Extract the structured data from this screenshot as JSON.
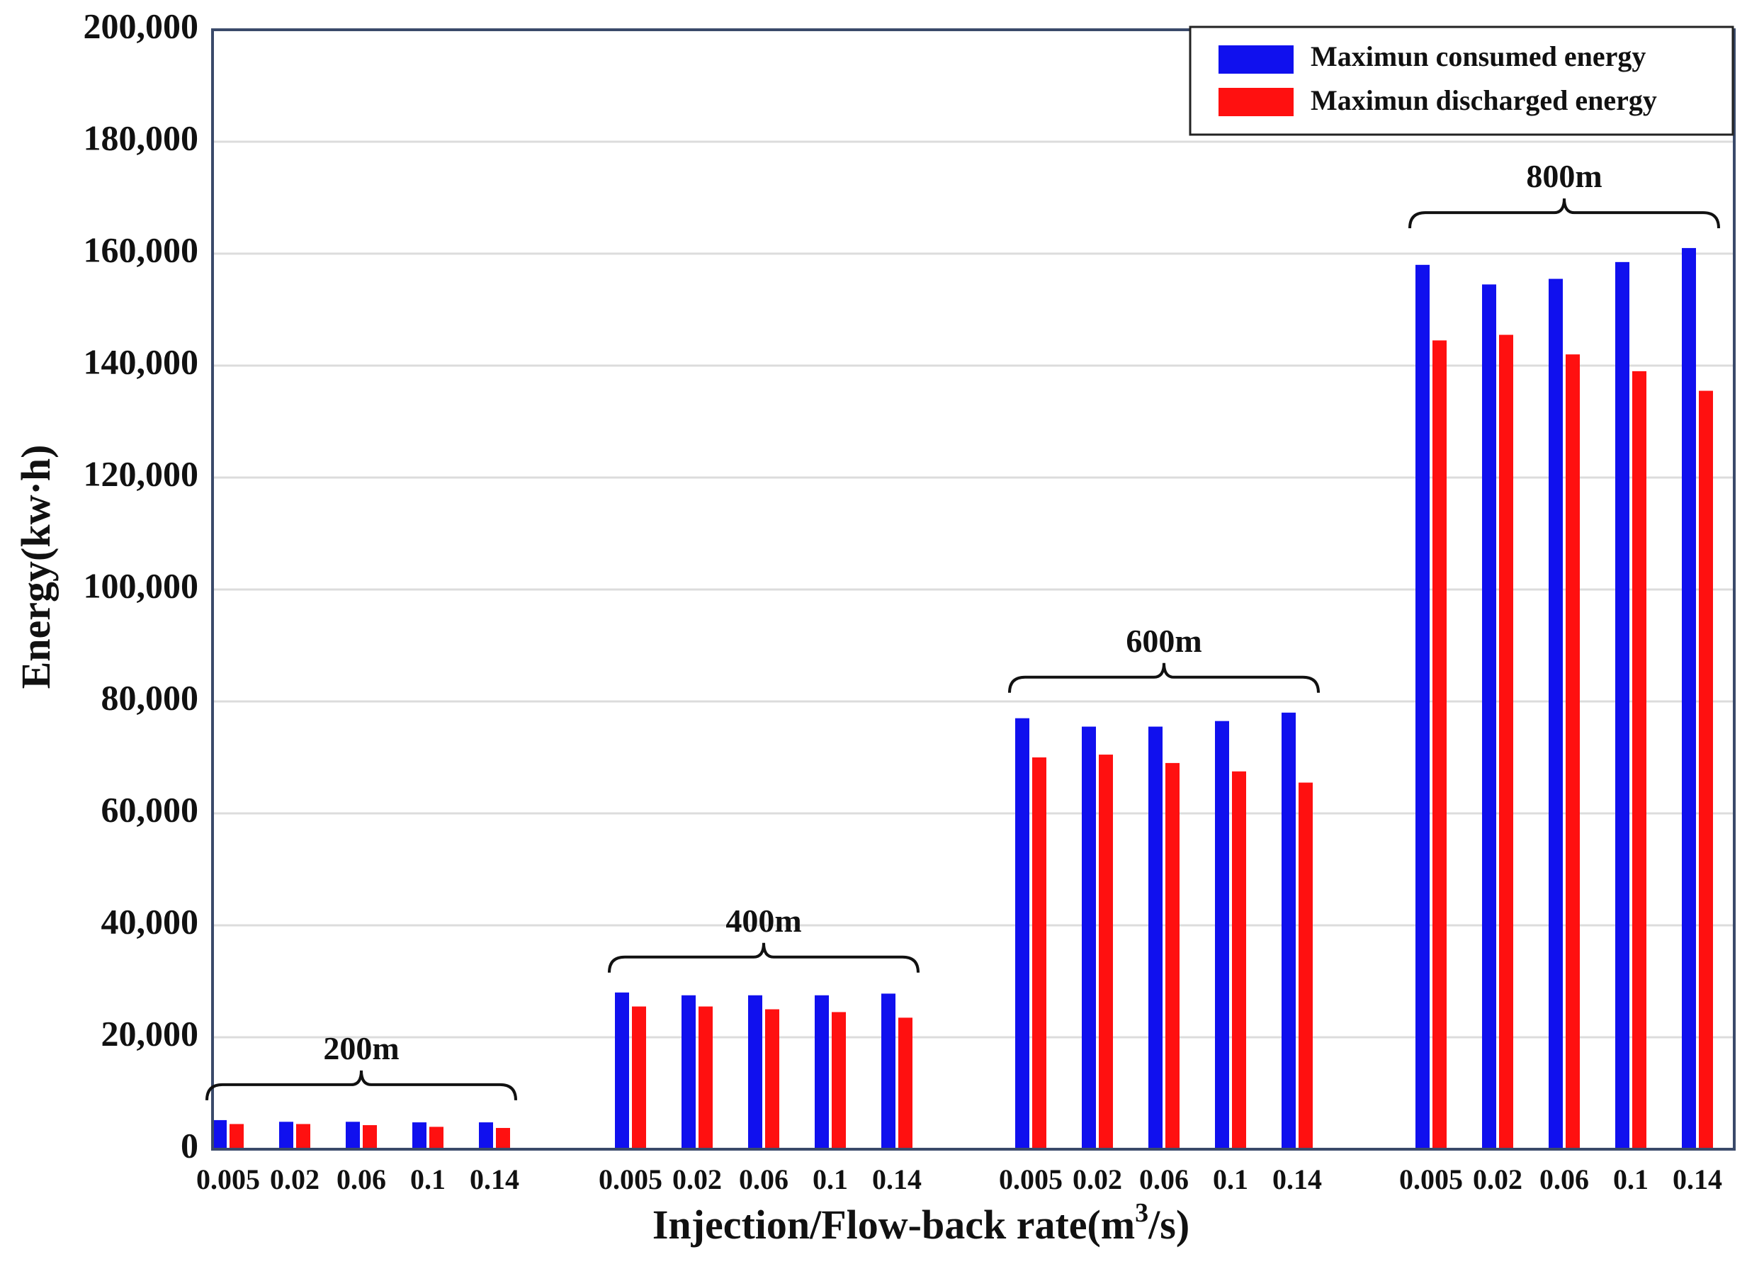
{
  "chart_data": {
    "type": "bar",
    "title": "",
    "xlabel": "Injection/Flow-back rate(m",
    "xlabel_sup": "3",
    "xlabel_tail": "/s)",
    "ylabel": "Energy(kw·h)",
    "ylim": [
      0,
      200000
    ],
    "yticks": [
      0,
      20000,
      40000,
      60000,
      80000,
      100000,
      120000,
      140000,
      160000,
      180000,
      200000
    ],
    "ytick_labels": [
      "0",
      "20,000",
      "40,000",
      "60,000",
      "80,000",
      "100,000",
      "120,000",
      "140,000",
      "160,000",
      "180,000",
      "200,000"
    ],
    "grid": true,
    "legend_position": "top-right",
    "groups": [
      {
        "label": "200m",
        "categories": [
          "0.005",
          "0.02",
          "0.06",
          "0.1",
          "0.14"
        ]
      },
      {
        "label": "400m",
        "categories": [
          "0.005",
          "0.02",
          "0.06",
          "0.1",
          "0.14"
        ]
      },
      {
        "label": "600m",
        "categories": [
          "0.005",
          "0.02",
          "0.06",
          "0.1",
          "0.14"
        ]
      },
      {
        "label": "800m",
        "categories": [
          "0.005",
          "0.02",
          "0.06",
          "0.1",
          "0.14"
        ]
      }
    ],
    "series": [
      {
        "name": "Maximun consumed energy",
        "color": "#1010ee",
        "values": [
          5200,
          4900,
          4900,
          4800,
          4800,
          28000,
          27500,
          27500,
          27500,
          27800,
          77000,
          75500,
          75500,
          76500,
          78000,
          158000,
          154500,
          155500,
          158500,
          161000
        ]
      },
      {
        "name": "Maximun discharged energy",
        "color": "#ff1010",
        "values": [
          4500,
          4500,
          4300,
          4000,
          3800,
          25500,
          25500,
          25000,
          24500,
          23500,
          70000,
          70500,
          69000,
          67500,
          65500,
          144500,
          145500,
          142000,
          139000,
          135500
        ]
      }
    ]
  }
}
